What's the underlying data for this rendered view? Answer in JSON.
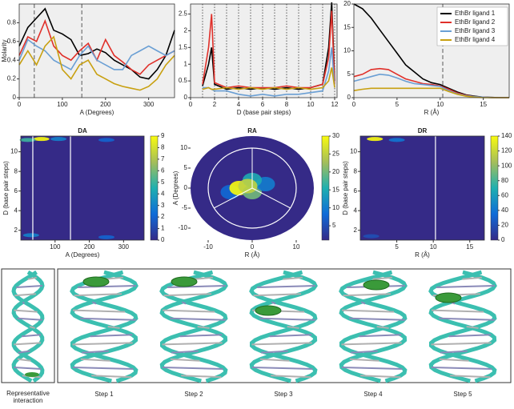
{
  "chart_data": [
    {
      "type": "line",
      "xlabel": "A (Degrees)",
      "ylabel": "Molarity",
      "x": [
        0,
        20,
        40,
        60,
        80,
        100,
        120,
        140,
        160,
        180,
        200,
        220,
        240,
        260,
        280,
        300,
        320,
        340,
        360
      ],
      "xlim": [
        0,
        360
      ],
      "xticks": [
        0,
        100,
        200,
        300
      ],
      "ylim": [
        0,
        1
      ],
      "yticks": [
        0,
        0.2,
        0.4,
        0.6,
        0.8
      ],
      "vlines": [
        35,
        145
      ],
      "vline_style": "dashed",
      "series": [
        {
          "color": "#000000",
          "values": [
            0.55,
            0.75,
            0.85,
            0.95,
            0.72,
            0.68,
            0.62,
            0.45,
            0.47,
            0.52,
            0.48,
            0.4,
            0.35,
            0.3,
            0.22,
            0.2,
            0.3,
            0.45,
            0.72
          ]
        },
        {
          "color": "#e0302a",
          "values": [
            0.45,
            0.65,
            0.6,
            0.82,
            0.55,
            0.45,
            0.4,
            0.5,
            0.58,
            0.4,
            0.62,
            0.45,
            0.38,
            0.3,
            0.25,
            0.35,
            0.4,
            0.45,
            0.5
          ]
        },
        {
          "color": "#6a9fd4",
          "values": [
            0.4,
            0.62,
            0.55,
            0.5,
            0.4,
            0.35,
            0.3,
            0.45,
            0.55,
            0.4,
            0.35,
            0.3,
            0.3,
            0.45,
            0.5,
            0.55,
            0.5,
            0.45,
            0.5
          ]
        },
        {
          "color": "#c8a010",
          "values": [
            0.35,
            0.5,
            0.35,
            0.55,
            0.65,
            0.3,
            0.2,
            0.35,
            0.4,
            0.25,
            0.2,
            0.15,
            0.12,
            0.1,
            0.08,
            0.12,
            0.2,
            0.35,
            0.45
          ]
        }
      ]
    },
    {
      "type": "line",
      "xlabel": "D (base pair steps)",
      "x": [
        1,
        1.5,
        1.75,
        2,
        3,
        4,
        5,
        6,
        7,
        8,
        9,
        10,
        11,
        11.5,
        11.75,
        12
      ],
      "xlim": [
        0,
        12.2
      ],
      "xticks": [
        0,
        2,
        4,
        6,
        8,
        10,
        12
      ],
      "ylim": [
        0,
        2.8
      ],
      "yticks": [
        0,
        0.5,
        1,
        1.5,
        2,
        2.5
      ],
      "vlines": [
        1,
        2,
        3,
        4,
        5,
        6,
        7,
        8,
        9,
        10,
        11,
        12
      ],
      "vline_style": "dotted",
      "series": [
        {
          "color": "#000000",
          "values": [
            0.35,
            1.0,
            1.5,
            0.4,
            0.25,
            0.3,
            0.25,
            0.3,
            0.25,
            0.3,
            0.25,
            0.3,
            0.4,
            1.5,
            2.85,
            0.5
          ]
        },
        {
          "color": "#e0302a",
          "values": [
            0.4,
            1.5,
            2.5,
            0.45,
            0.3,
            0.35,
            0.3,
            0.3,
            0.3,
            0.35,
            0.3,
            0.3,
            0.4,
            1.2,
            2.6,
            0.4
          ]
        },
        {
          "color": "#6a9fd4",
          "values": [
            0.3,
            0.3,
            0.25,
            0.2,
            0.2,
            0.1,
            0.05,
            0.1,
            0.05,
            0.1,
            0.1,
            0.15,
            0.2,
            0.8,
            1.5,
            0.3
          ]
        },
        {
          "color": "#c8a010",
          "values": [
            0.25,
            0.3,
            0.25,
            0.25,
            0.3,
            0.25,
            0.3,
            0.25,
            0.3,
            0.25,
            0.3,
            0.25,
            0.3,
            0.5,
            0.9,
            0.3
          ]
        }
      ]
    },
    {
      "type": "line",
      "xlabel": "R (Å)",
      "x": [
        0,
        1,
        2,
        3,
        4,
        5,
        6,
        7,
        8,
        9,
        10,
        11,
        12,
        13,
        14,
        15,
        16,
        17,
        18
      ],
      "xlim": [
        0,
        18
      ],
      "xticks": [
        0,
        5,
        10,
        15
      ],
      "ylim": [
        0,
        20
      ],
      "yticks": [
        0,
        5,
        10,
        15,
        20
      ],
      "vlines": [
        10.3
      ],
      "vline_style": "dashed",
      "legend": "upper right",
      "series": [
        {
          "name": "EthBr ligand 1",
          "color": "#000000",
          "values": [
            20,
            19,
            17,
            14.5,
            12,
            9.5,
            7,
            5.5,
            4,
            3.2,
            2.8,
            2,
            1.2,
            0.6,
            0.3,
            0.1,
            0.05,
            0,
            0
          ]
        },
        {
          "name": "EthBr ligand 2",
          "color": "#e0302a",
          "values": [
            4.5,
            5,
            6,
            6.2,
            6,
            5,
            4,
            3.5,
            3,
            2.8,
            2.5,
            1.8,
            1,
            0.5,
            0.2,
            0.1,
            0,
            0,
            0
          ]
        },
        {
          "name": "EthBr ligand 3",
          "color": "#6a9fd4",
          "values": [
            3.5,
            4,
            4.5,
            5,
            4.8,
            4.2,
            3.5,
            3,
            2.8,
            2.6,
            2.4,
            1.5,
            0.8,
            0.4,
            0.2,
            0.1,
            0,
            0,
            0
          ]
        },
        {
          "name": "EthBr ligand 4",
          "color": "#c8a010",
          "values": [
            1.5,
            1.8,
            2,
            2,
            2,
            2,
            2,
            2,
            2,
            2,
            2,
            1.3,
            0.7,
            0.3,
            0.1,
            0,
            0,
            0,
            0
          ]
        }
      ]
    },
    {
      "type": "contour",
      "title": "DA",
      "xlabel": "A (Degrees)",
      "ylabel": "D (base pair steps)",
      "xlim": [
        0,
        360
      ],
      "xticks": [
        100,
        200,
        300
      ],
      "ylim": [
        1,
        11.6
      ],
      "yticks": [
        2,
        4,
        6,
        8,
        10
      ],
      "clim": [
        0,
        9
      ],
      "cticks": [
        0,
        1,
        2,
        3,
        4,
        5,
        6,
        7,
        8,
        9
      ],
      "vlines": [
        35,
        145
      ],
      "points": {
        "x": [
          60,
          20,
          110,
          250,
          30,
          250
        ],
        "y": [
          11.3,
          11.2,
          11.3,
          11.2,
          1.5,
          1.3
        ],
        "values": [
          9,
          5,
          3,
          2,
          3,
          2
        ]
      }
    },
    {
      "type": "contour",
      "title": "RA",
      "xlabel": "R (Å)",
      "ylabel": "A (Degrees)",
      "polar": true,
      "xlim": [
        -14,
        14
      ],
      "xticks": [
        -10,
        0,
        10
      ],
      "ylim": [
        -13,
        13
      ],
      "yticks": [
        10,
        5,
        0,
        -5,
        -10
      ],
      "clim": [
        1,
        30
      ],
      "cticks": [
        5,
        10,
        15,
        20,
        25,
        30
      ],
      "points": {
        "x": [
          -5,
          -3,
          0,
          3,
          0,
          -1
        ],
        "y": [
          -1,
          0,
          -1,
          1,
          2,
          0.5
        ],
        "values": [
          8,
          30,
          20,
          10,
          15,
          25
        ]
      }
    },
    {
      "type": "contour",
      "title": "DR",
      "ylabel": "D (base pair steps)",
      "xlabel": "R (Å)",
      "xlim": [
        0,
        17
      ],
      "xticks": [
        5,
        10,
        15
      ],
      "ylim": [
        1,
        11.6
      ],
      "yticks": [
        2,
        4,
        6,
        8,
        10
      ],
      "clim": [
        0,
        140
      ],
      "cticks": [
        0,
        20,
        40,
        60,
        80,
        100,
        120,
        140
      ],
      "vlines": [
        10.3
      ],
      "points": {
        "x": [
          2,
          5,
          1.5
        ],
        "y": [
          11.3,
          11.2,
          1.4
        ],
        "values": [
          140,
          40,
          20
        ]
      }
    }
  ],
  "figure_captions": {
    "representative": [
      "Representative",
      "interaction"
    ],
    "steps": [
      "Step 1",
      "Step 2",
      "Step 3",
      "Step 4",
      "Step 5"
    ]
  }
}
